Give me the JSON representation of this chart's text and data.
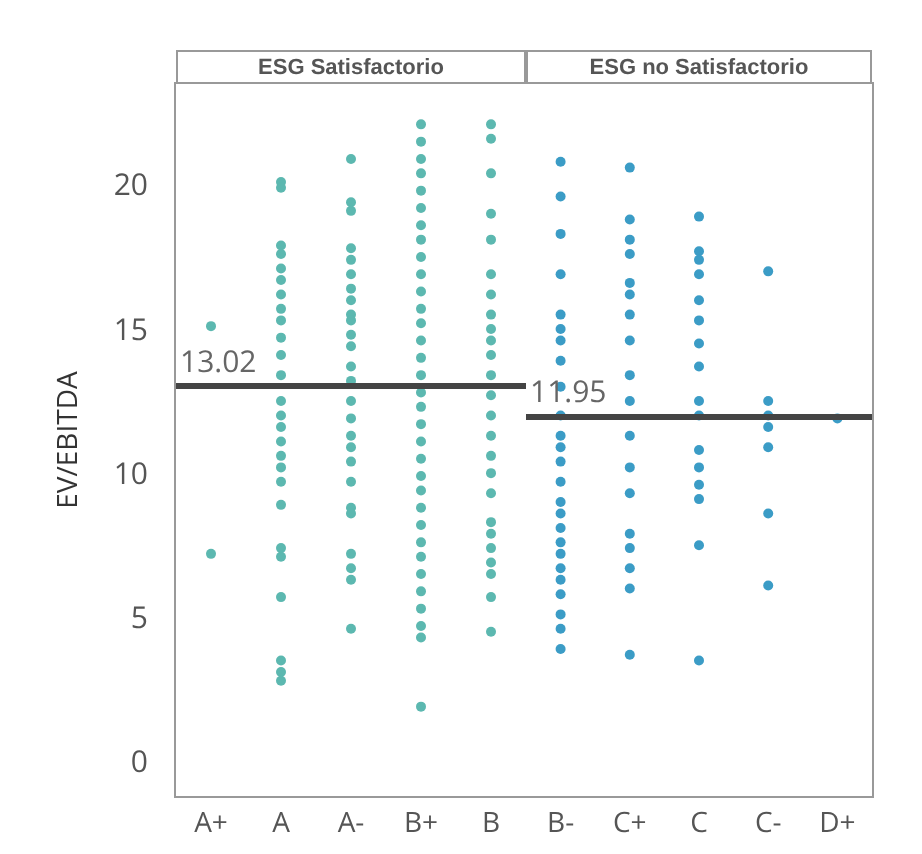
{
  "chart_data": [
    {
      "type": "scatter",
      "title": "ESG Satisfactorio",
      "ylabel": "EV/EBITDA",
      "categories": [
        "A+",
        "A",
        "A-",
        "B+",
        "B"
      ],
      "ylim": [
        -1.2,
        23.5
      ],
      "yticks": [
        0,
        5,
        10,
        15,
        20
      ],
      "grid": false,
      "marker": "circle",
      "series": [
        {
          "color": "#5cb8b0",
          "x": [
            "A+",
            "A+",
            "A",
            "A",
            "A",
            "A",
            "A",
            "A",
            "A",
            "A",
            "A",
            "A",
            "A",
            "A",
            "A",
            "A",
            "A",
            "A",
            "A",
            "A",
            "A",
            "A",
            "A",
            "A",
            "A",
            "A",
            "A",
            "A",
            "A-",
            "A-",
            "A-",
            "A-",
            "A-",
            "A-",
            "A-",
            "A-",
            "A-",
            "A-",
            "A-",
            "A-",
            "A-",
            "A-",
            "A-",
            "A-",
            "A-",
            "A-",
            "A-",
            "A-",
            "A-",
            "A-",
            "A-",
            "A-",
            "A-",
            "A-",
            "B+",
            "B+",
            "B+",
            "B+",
            "B+",
            "B+",
            "B+",
            "B+",
            "B+",
            "B+",
            "B+",
            "B+",
            "B+",
            "B+",
            "B+",
            "B+",
            "B+",
            "B+",
            "B+",
            "B+",
            "B+",
            "B+",
            "B+",
            "B+",
            "B+",
            "B+",
            "B+",
            "B+",
            "B+",
            "B+",
            "B+",
            "B+",
            "B+",
            "B",
            "B",
            "B",
            "B",
            "B",
            "B",
            "B",
            "B",
            "B",
            "B",
            "B",
            "B",
            "B",
            "B",
            "B",
            "B",
            "B",
            "B",
            "B",
            "B",
            "B",
            "B",
            "B",
            "B",
            "B"
          ],
          "values": [
            15.1,
            7.2,
            20.1,
            19.9,
            17.9,
            17.6,
            17.1,
            16.7,
            16.2,
            15.7,
            15.3,
            14.7,
            14.1,
            13.4,
            12.5,
            12.0,
            11.6,
            11.1,
            10.6,
            10.2,
            9.7,
            8.9,
            7.4,
            7.1,
            5.7,
            3.5,
            3.1,
            2.8,
            20.9,
            19.4,
            19.1,
            17.8,
            17.4,
            16.9,
            16.4,
            16.0,
            15.5,
            15.3,
            14.8,
            14.4,
            13.7,
            13.2,
            12.5,
            11.9,
            11.3,
            10.9,
            10.4,
            9.7,
            8.8,
            8.6,
            7.2,
            6.7,
            6.3,
            4.6,
            22.1,
            21.5,
            20.9,
            20.4,
            19.8,
            19.2,
            18.6,
            18.1,
            17.5,
            16.9,
            16.3,
            15.7,
            15.2,
            14.6,
            14.0,
            13.4,
            12.8,
            12.3,
            11.7,
            11.1,
            10.5,
            9.9,
            9.4,
            8.8,
            8.2,
            7.6,
            7.1,
            6.5,
            5.9,
            5.3,
            4.7,
            4.3,
            1.9,
            22.1,
            21.6,
            20.4,
            19.0,
            18.1,
            16.9,
            16.2,
            15.5,
            15.0,
            14.6,
            14.1,
            13.4,
            12.7,
            12.0,
            11.3,
            10.6,
            10.0,
            9.3,
            8.3,
            7.9,
            7.4,
            6.9,
            6.5,
            5.7,
            4.5
          ]
        }
      ],
      "ref_lines": [
        {
          "axis": "y",
          "value": 13.02,
          "label": "13.02",
          "color": "#444444"
        }
      ]
    },
    {
      "type": "scatter",
      "title": "ESG no Satisfactorio",
      "categories": [
        "B-",
        "C+",
        "C",
        "C-",
        "D+"
      ],
      "ylim": [
        -1.2,
        23.5
      ],
      "yticks": [
        0,
        5,
        10,
        15,
        20
      ],
      "tick_labels": "x",
      "grid": false,
      "marker": "circle",
      "series": [
        {
          "color": "#3b9cc6",
          "x": [
            "B-",
            "B-",
            "B-",
            "B-",
            "B-",
            "B-",
            "B-",
            "B-",
            "B-",
            "B-",
            "B-",
            "B-",
            "B-",
            "B-",
            "B-",
            "B-",
            "B-",
            "B-",
            "B-",
            "B-",
            "B-",
            "B-",
            "B-",
            "B-",
            "B-",
            "C+",
            "C+",
            "C+",
            "C+",
            "C+",
            "C+",
            "C+",
            "C+",
            "C+",
            "C+",
            "C+",
            "C+",
            "C+",
            "C+",
            "C+",
            "C+",
            "C+",
            "C+",
            "C",
            "C",
            "C",
            "C",
            "C",
            "C",
            "C",
            "C",
            "C",
            "C",
            "C",
            "C",
            "C",
            "C",
            "C",
            "C",
            "C-",
            "C-",
            "C-",
            "C-",
            "C-",
            "C-",
            "C-",
            "D+"
          ],
          "values": [
            20.8,
            19.6,
            18.3,
            16.9,
            15.5,
            15.0,
            14.6,
            13.9,
            13.0,
            12.0,
            11.3,
            10.9,
            10.4,
            9.7,
            9.0,
            8.6,
            8.1,
            7.6,
            7.2,
            6.7,
            6.3,
            5.8,
            5.1,
            4.6,
            3.9,
            20.6,
            18.8,
            18.1,
            17.6,
            16.6,
            16.2,
            15.5,
            14.6,
            13.4,
            12.5,
            11.3,
            10.2,
            9.3,
            7.9,
            7.4,
            6.7,
            6.0,
            3.7,
            18.9,
            17.7,
            17.4,
            16.9,
            16.0,
            15.3,
            14.5,
            13.7,
            12.5,
            12.0,
            10.8,
            10.2,
            9.6,
            9.1,
            7.5,
            3.5,
            17.0,
            12.5,
            12.0,
            11.6,
            10.9,
            8.6,
            6.1,
            11.9
          ]
        }
      ],
      "ref_lines": [
        {
          "axis": "y",
          "value": 11.95,
          "label": "11.95",
          "color": "#444444"
        }
      ]
    }
  ]
}
